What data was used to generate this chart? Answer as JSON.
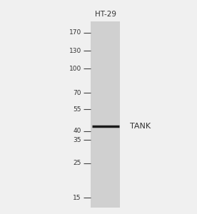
{
  "title": "HT-29",
  "band_label": "TANK",
  "gel_bg_color": "#d0d0d0",
  "outer_bg_color": "#f0f0f0",
  "band_color": "#1a1a1a",
  "mw_markers": [
    170,
    130,
    100,
    70,
    55,
    40,
    35,
    25,
    15
  ],
  "band_mw": 43,
  "title_fontsize": 7.5,
  "marker_fontsize": 6.5,
  "band_label_fontsize": 8,
  "tick_color": "#444444",
  "text_color": "#333333"
}
